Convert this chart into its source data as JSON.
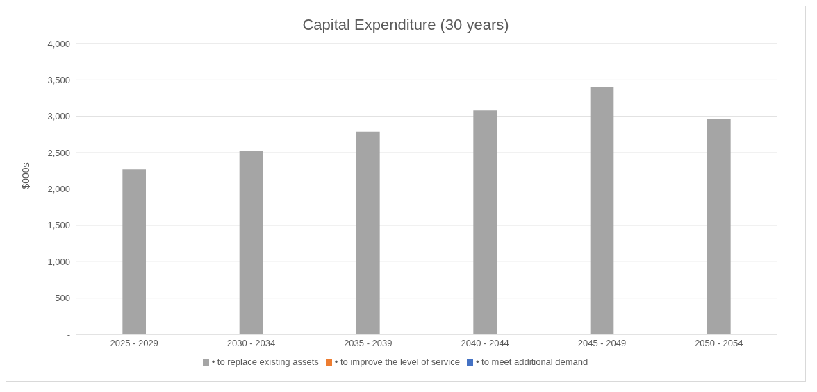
{
  "chart_data": {
    "type": "bar",
    "stacked": true,
    "title": "Capital Expenditure (30 years)",
    "ylabel": "$000s",
    "categories": [
      "2025 - 2029",
      "2030 - 2034",
      "2035 - 2039",
      "2040 - 2044",
      "2045 - 2049",
      "2050 - 2054"
    ],
    "series": [
      {
        "name": "• to replace existing assets",
        "color": "#a5a5a5",
        "values": [
          2270,
          2520,
          2790,
          3080,
          3400,
          2970
        ]
      },
      {
        "name": "• to improve the level of service",
        "color": "#ed7d31",
        "values": [
          0,
          0,
          0,
          0,
          0,
          0
        ]
      },
      {
        "name": "• to meet additional demand",
        "color": "#4472c4",
        "values": [
          0,
          0,
          0,
          0,
          0,
          0
        ]
      }
    ],
    "ylim": [
      0,
      4000
    ],
    "yticks": [
      {
        "value": 0,
        "label": "-"
      },
      500,
      {
        "value": 1000,
        "label": "1,000"
      },
      {
        "value": 1500,
        "label": "1,500"
      },
      {
        "value": 2000,
        "label": "2,000"
      },
      {
        "value": 2500,
        "label": "2,500"
      },
      {
        "value": 3000,
        "label": "3,000"
      },
      {
        "value": 3500,
        "label": "3,500"
      },
      {
        "value": 4000,
        "label": "4,000"
      }
    ],
    "grid": "y",
    "legend": "bottom"
  }
}
